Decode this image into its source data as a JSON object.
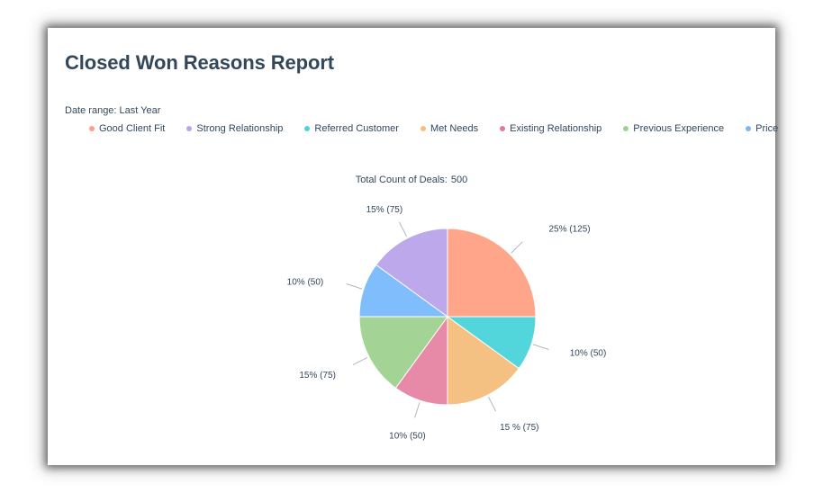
{
  "report": {
    "title": "Closed Won Reasons Report",
    "date_range": "Date range: Last Year",
    "total_label": "Total Count of Deals:",
    "total_value": "500"
  },
  "chart_data": {
    "type": "pie",
    "title": "Total Count of Deals: 500",
    "categories": [
      "Good Client Fit",
      "Referred Customer",
      "Met Needs",
      "Existing Relationship",
      "Previous Experience",
      "Price",
      "Strong Relationship"
    ],
    "values": [
      125,
      50,
      75,
      50,
      75,
      50,
      75
    ],
    "labels": [
      "25% (125)",
      "10% (50)",
      "15 % (75)",
      "10% (50)",
      "15% (75)",
      "10% (50)",
      "15% (75)"
    ],
    "colors": [
      "#ffa58a",
      "#52d6db",
      "#f5c182",
      "#e68aa8",
      "#a3d495",
      "#80bdfc",
      "#bda8ec"
    ],
    "legend": [
      {
        "label": "Good Client Fit",
        "color": "#ff9f87"
      },
      {
        "label": "Strong Relationship",
        "color": "#b7a6eb"
      },
      {
        "label": "Referred Customer",
        "color": "#4fd3d8"
      },
      {
        "label": "Met Needs",
        "color": "#f5bf7e"
      },
      {
        "label": "Existing Relationship",
        "color": "#e2799c"
      },
      {
        "label": "Previous Experience",
        "color": "#9fd191"
      },
      {
        "label": "Price",
        "color": "#7db9f7"
      }
    ],
    "legend_position": "top"
  }
}
